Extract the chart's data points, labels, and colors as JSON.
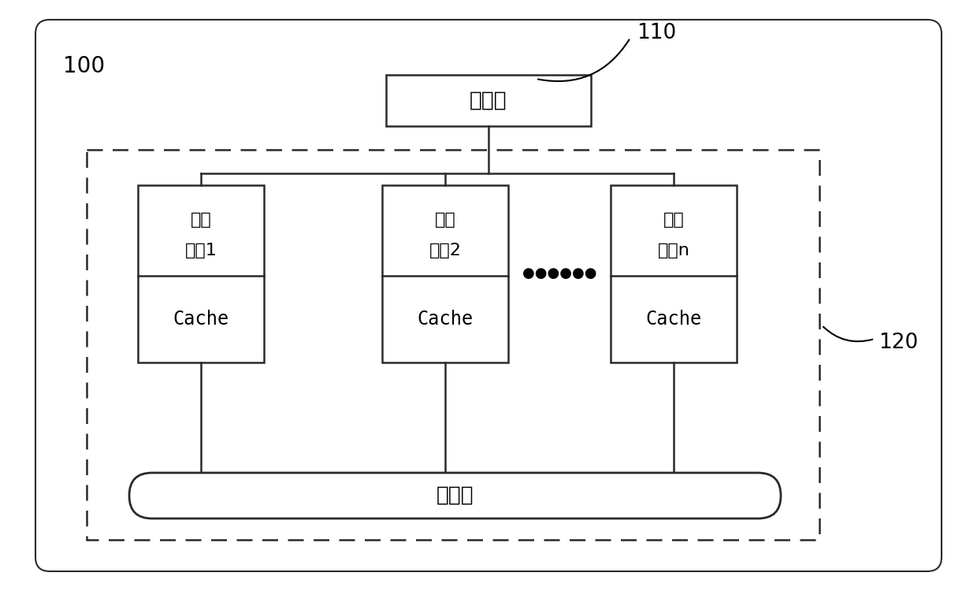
{
  "bg_color": "#ffffff",
  "border_color": "#2a2a2a",
  "box_color": "#ffffff",
  "text_color": "#000000",
  "label_100": "100",
  "label_110": "110",
  "label_120": "120",
  "memory_label": "存储器",
  "bus_label": "内总线",
  "core1_line1": "处理",
  "core1_line2": "器核1",
  "core2_line1": "处理",
  "core2_line2": "器核2",
  "coren_line1": "处理",
  "coren_line2": "器核n",
  "cache_label": "Cache",
  "dots": "●●●●●●",
  "figsize": [
    12.4,
    7.5
  ],
  "dpi": 100
}
